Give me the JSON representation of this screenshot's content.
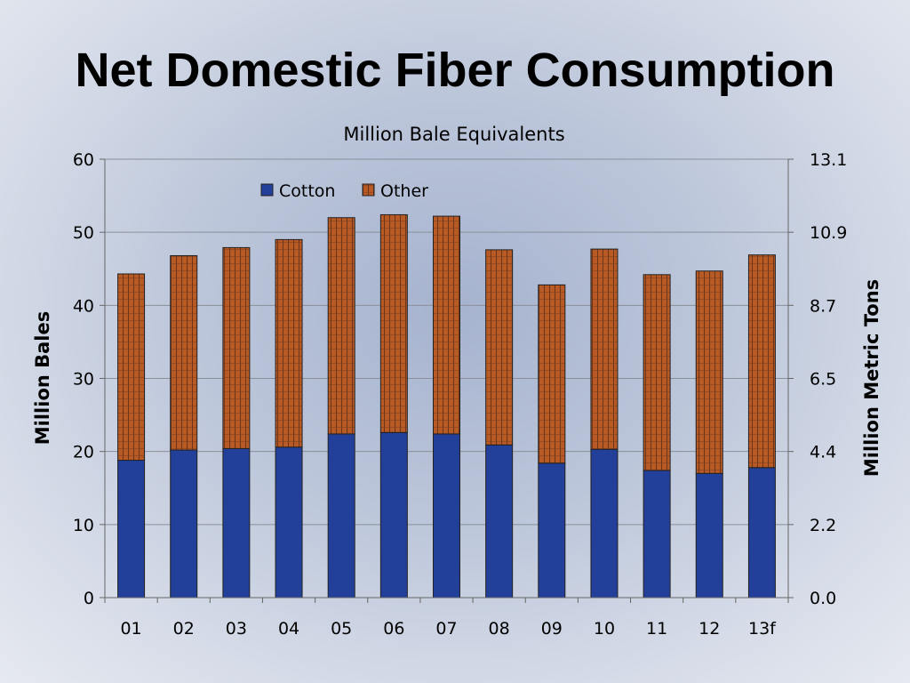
{
  "title": "Net Domestic Fiber Consumption",
  "chart_data": {
    "type": "bar",
    "stacked": true,
    "subtitle": "Million Bale Equivalents",
    "categories": [
      "01",
      "02",
      "03",
      "04",
      "05",
      "06",
      "07",
      "08",
      "09",
      "10",
      "11",
      "12",
      "13f"
    ],
    "series": [
      {
        "name": "Cotton",
        "color": "#223f99",
        "values": [
          18.8,
          20.2,
          20.4,
          20.6,
          22.4,
          22.6,
          22.4,
          20.9,
          18.4,
          20.3,
          17.4,
          17.0,
          17.8
        ]
      },
      {
        "name": "Other",
        "color": "#b85a26",
        "values": [
          25.5,
          26.6,
          27.5,
          28.4,
          29.6,
          29.8,
          29.8,
          26.7,
          24.4,
          27.4,
          26.8,
          27.7,
          29.1
        ]
      }
    ],
    "ylabel": "Million Bales",
    "ylim": [
      0,
      60
    ],
    "yticks": [
      "0",
      "10",
      "20",
      "30",
      "40",
      "50",
      "60"
    ],
    "y2label": "Million Metric Tons",
    "y2ticks": [
      "0.0",
      "2.2",
      "4.4",
      "6.5",
      "8.7",
      "10.9",
      "13.1"
    ],
    "grid": true,
    "legend": "top-center"
  }
}
